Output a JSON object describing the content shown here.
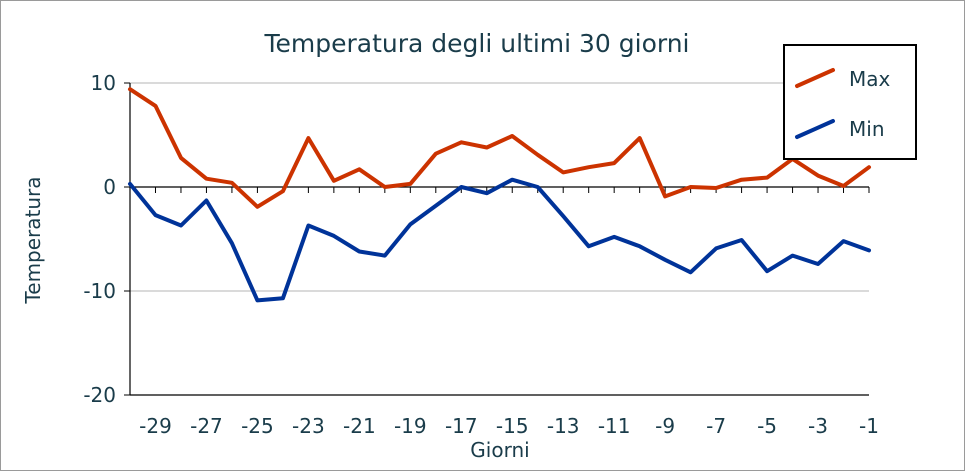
{
  "chart_data": {
    "type": "line",
    "title": "Temperatura degli ultimi 30 giorni",
    "xlabel": "Giorni",
    "ylabel": "Temperatura",
    "x": [
      -30,
      -29,
      -28,
      -27,
      -26,
      -25,
      -24,
      -23,
      -22,
      -21,
      -20,
      -19,
      -18,
      -17,
      -16,
      -15,
      -14,
      -13,
      -12,
      -11,
      -10,
      -9,
      -8,
      -7,
      -6,
      -5,
      -4,
      -3,
      -2,
      -1
    ],
    "xticks": [
      -29,
      -27,
      -25,
      -23,
      -21,
      -19,
      -17,
      -15,
      -13,
      -11,
      -9,
      -7,
      -5,
      -3,
      -1
    ],
    "xtick_labels": [
      "-29",
      "-27",
      "-25",
      "-23",
      "-21",
      "-19",
      "-17",
      "-15",
      "-13",
      "-11",
      "-9",
      "-7",
      "-5",
      "-3",
      "-1"
    ],
    "yticks": [
      10,
      0,
      -10,
      -20
    ],
    "ytick_labels": [
      "10",
      "0",
      "-10",
      "-20"
    ],
    "xlim": [
      -30,
      -1
    ],
    "ylim": [
      -20,
      10
    ],
    "grid": true,
    "legend_position": "top-right",
    "series": [
      {
        "name": "Max",
        "color": "#cc3300",
        "values": [
          9.4,
          7.8,
          2.8,
          0.8,
          0.4,
          -1.9,
          -0.4,
          4.7,
          0.6,
          1.7,
          0.0,
          0.3,
          3.2,
          4.3,
          3.8,
          4.9,
          3.1,
          1.4,
          1.9,
          2.3,
          4.7,
          -0.9,
          0.0,
          -0.1,
          0.7,
          0.9,
          2.7,
          1.1,
          0.1,
          1.9
        ]
      },
      {
        "name": "Min",
        "color": "#003399",
        "values": [
          0.3,
          -2.7,
          -3.7,
          -1.3,
          -5.4,
          -10.9,
          -10.7,
          -3.7,
          -4.7,
          -6.2,
          -6.6,
          -3.6,
          -1.8,
          0.0,
          -0.6,
          0.7,
          0.0,
          -2.8,
          -5.7,
          -4.8,
          -5.7,
          -7.0,
          -8.2,
          -5.9,
          -5.1,
          -8.1,
          -6.6,
          -7.4,
          -5.2,
          -6.1
        ]
      }
    ]
  }
}
